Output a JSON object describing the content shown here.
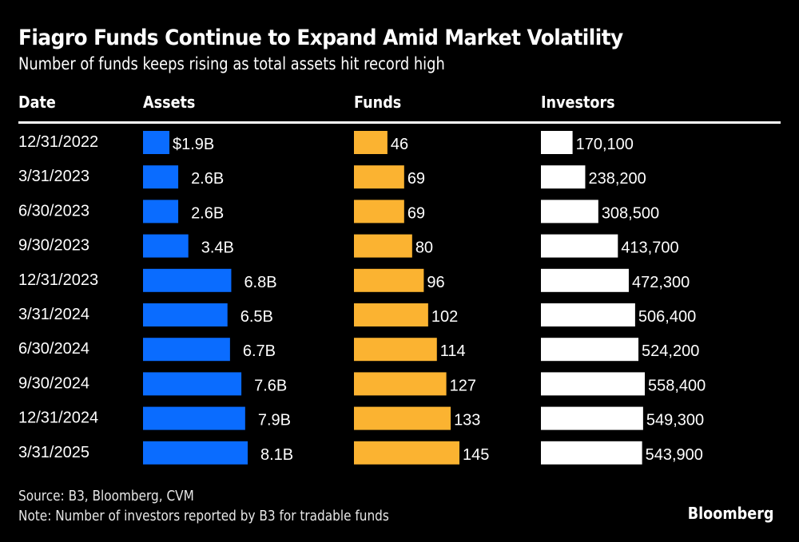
{
  "chart_data": {
    "type": "bar",
    "title": "Fiagro Funds Continue to Expand Amid Market Volatility",
    "subtitle": "Number of funds keeps rising as total assets hit record high",
    "columns": {
      "date": "Date",
      "assets": "Assets",
      "funds": "Funds",
      "investors": "Investors"
    },
    "categories": [
      "12/31/2022",
      "3/31/2023",
      "6/30/2023",
      "9/30/2023",
      "12/31/2023",
      "3/31/2024",
      "6/30/2024",
      "9/30/2024",
      "12/31/2024",
      "3/31/2025"
    ],
    "series": [
      {
        "name": "Assets",
        "unit": "USD billions",
        "color": "#0a6cff",
        "values": [
          1.9,
          2.6,
          2.6,
          3.4,
          6.8,
          6.5,
          6.7,
          7.6,
          7.9,
          8.1
        ],
        "labels": [
          "$1.9B",
          "2.6B",
          "2.6B",
          "3.4B",
          "6.8B",
          "6.5B",
          "6.7B",
          "7.6B",
          "7.9B",
          "8.1B"
        ]
      },
      {
        "name": "Funds",
        "unit": "count",
        "color": "#fbb331",
        "values": [
          46,
          69,
          69,
          80,
          96,
          102,
          114,
          127,
          133,
          145
        ],
        "labels": [
          "46",
          "69",
          "69",
          "80",
          "96",
          "102",
          "114",
          "127",
          "133",
          "145"
        ]
      },
      {
        "name": "Investors",
        "unit": "count",
        "color": "#ffffff",
        "values": [
          170100,
          238200,
          308500,
          413700,
          472300,
          506400,
          524200,
          558400,
          549300,
          543900
        ],
        "labels": [
          "170,100",
          "238,200",
          "308,500",
          "413,700",
          "472,300",
          "506,400",
          "524,200",
          "558,400",
          "549,300",
          "543,900"
        ]
      }
    ],
    "source": "Source: B3, Bloomberg, CVM",
    "note": "Note: Number of investors reported by B3 for tradable funds",
    "brand": "Bloomberg",
    "background": "#000000",
    "grid": false,
    "legend": "none"
  }
}
